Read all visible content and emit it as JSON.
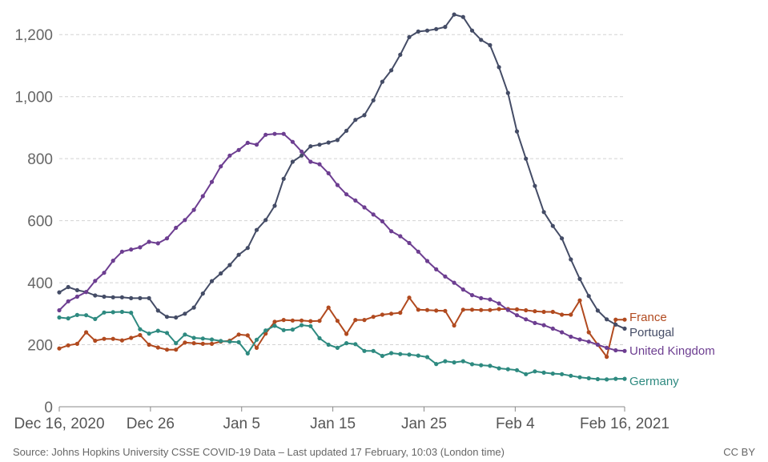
{
  "chart_data": {
    "type": "line",
    "title": "",
    "xlabel": "",
    "ylabel": "",
    "x_start": "2020-12-16",
    "x_end": "2021-02-16",
    "x_ticks": [
      "Dec 16, 2020",
      "Dec 26",
      "Jan 5",
      "Jan 15",
      "Jan 25",
      "Feb 4",
      "Feb 16, 2021"
    ],
    "y_ticks": [
      "0",
      "200",
      "400",
      "600",
      "800",
      "1,000",
      "1,200"
    ],
    "ylim": [
      0,
      1260
    ],
    "grid": "horizontal dashed",
    "legend": "inline labels at line ends",
    "series": [
      {
        "name": "France",
        "color": "#b14a1f",
        "values": [
          188,
          198,
          203,
          240,
          213,
          219,
          219,
          214,
          222,
          231,
          200,
          191,
          184,
          184,
          207,
          205,
          203,
          203,
          210,
          213,
          233,
          230,
          190,
          236,
          274,
          280,
          278,
          278,
          276,
          277,
          320,
          277,
          235,
          280,
          280,
          290,
          297,
          300,
          303,
          352,
          313,
          312,
          310,
          309,
          262,
          313,
          313,
          312,
          312,
          315,
          315,
          314,
          311,
          308,
          306,
          306,
          297,
          297,
          343,
          240,
          200,
          161,
          281,
          281
        ]
      },
      {
        "name": "Portugal",
        "color": "#444c66",
        "values": [
          369,
          386,
          376,
          370,
          359,
          355,
          353,
          353,
          350,
          350,
          350,
          310,
          290,
          288,
          300,
          320,
          365,
          405,
          430,
          457,
          490,
          512,
          570,
          602,
          648,
          735,
          790,
          810,
          840,
          845,
          852,
          860,
          890,
          925,
          940,
          988,
          1048,
          1085,
          1135,
          1192,
          1210,
          1213,
          1218,
          1225,
          1265,
          1257,
          1213,
          1183,
          1166,
          1095,
          1012,
          888,
          800,
          712,
          628,
          583,
          543,
          475,
          412,
          357,
          310,
          282,
          265,
          252
        ]
      },
      {
        "name": "United Kingdom",
        "color": "#6d3e91",
        "values": [
          311,
          340,
          355,
          370,
          406,
          432,
          471,
          500,
          507,
          514,
          532,
          527,
          543,
          577,
          602,
          635,
          679,
          725,
          775,
          810,
          828,
          851,
          845,
          877,
          880,
          880,
          854,
          823,
          790,
          782,
          753,
          715,
          685,
          665,
          643,
          620,
          598,
          566,
          550,
          528,
          500,
          470,
          443,
          420,
          400,
          378,
          360,
          350,
          346,
          333,
          312,
          295,
          282,
          270,
          263,
          252,
          240,
          226,
          217,
          210,
          200,
          190,
          182,
          180
        ]
      },
      {
        "name": "Germany",
        "color": "#2e8a80",
        "values": [
          288,
          285,
          296,
          295,
          283,
          304,
          305,
          306,
          303,
          250,
          236,
          245,
          238,
          205,
          233,
          222,
          220,
          217,
          212,
          210,
          208,
          172,
          216,
          246,
          261,
          247,
          249,
          263,
          260,
          221,
          200,
          190,
          205,
          202,
          180,
          180,
          164,
          173,
          170,
          168,
          165,
          160,
          138,
          147,
          143,
          147,
          137,
          134,
          132,
          124,
          121,
          118,
          105,
          114,
          110,
          107,
          105,
          100,
          95,
          92,
          89,
          88,
          90,
          90
        ]
      }
    ]
  },
  "footer": {
    "source": "Source: Johns Hopkins University CSSE COVID-19 Data – Last updated 17 February, 10:03 (London time)",
    "license": "CC BY"
  }
}
